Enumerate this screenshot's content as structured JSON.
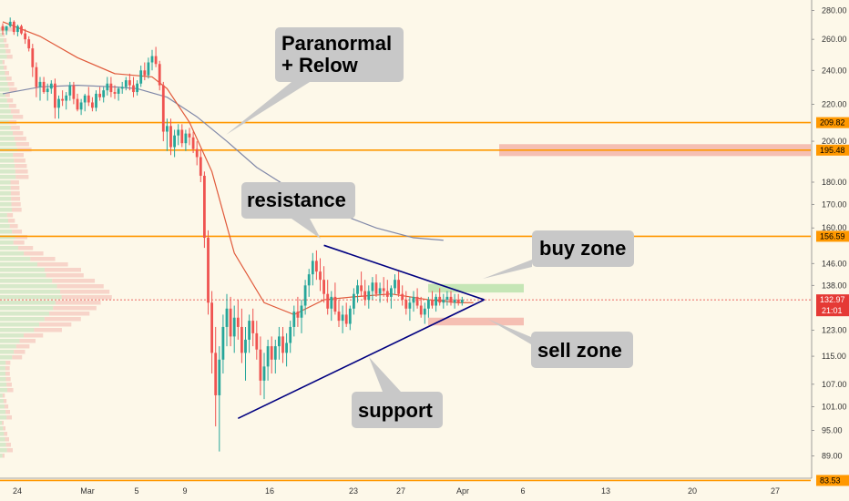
{
  "chart_data": {
    "type": "candlestick",
    "y_scale": "log",
    "ylim": [
      85,
      285
    ],
    "y_ticks": [
      {
        "value": 89,
        "label": "89.00"
      },
      {
        "value": 95,
        "label": "95.00"
      },
      {
        "value": 101,
        "label": "101.00"
      },
      {
        "value": 107,
        "label": "107.00"
      },
      {
        "value": 115,
        "label": "115.00"
      },
      {
        "value": 123,
        "label": "123.00"
      },
      {
        "value": 138,
        "label": "138.00"
      },
      {
        "value": 146,
        "label": "146.00"
      },
      {
        "value": 160,
        "label": "160.00"
      },
      {
        "value": 170,
        "label": "170.00"
      },
      {
        "value": 180,
        "label": "180.00"
      },
      {
        "value": 200,
        "label": "200.00"
      },
      {
        "value": 220,
        "label": "220.00"
      },
      {
        "value": 240,
        "label": "240.00"
      },
      {
        "value": 260,
        "label": "260.00"
      },
      {
        "value": 280,
        "label": "280.00"
      }
    ],
    "x_ticks": [
      "24",
      "Mar",
      "5",
      "9",
      "16",
      "23",
      "27",
      "Apr",
      "6",
      "13",
      "20",
      "27"
    ],
    "horizontal_levels": [
      {
        "value": 209.82,
        "label": "209.82"
      },
      {
        "value": 195.48,
        "label": "195.48"
      },
      {
        "value": 156.59,
        "label": "156.59"
      },
      {
        "value": 83.53,
        "label": "83.53"
      }
    ],
    "current_price": {
      "value": 132.97,
      "label": "132.97",
      "countdown": "21:01"
    },
    "callouts": [
      {
        "text": "Paranormal\n+ Relow"
      },
      {
        "text": "resistance"
      },
      {
        "text": "buy zone"
      },
      {
        "text": "sell zone"
      },
      {
        "text": "support"
      }
    ],
    "zones": [
      {
        "name": "buy zone",
        "low": 135.5,
        "high": 138.5
      },
      {
        "name": "sell zone",
        "low": 124.5,
        "high": 127.0
      },
      {
        "name": "resistance zone",
        "low": 192.5,
        "high": 198.5
      }
    ],
    "triangle": {
      "resistance": [
        {
          "bar": 86,
          "price": 153
        },
        {
          "bar": 126,
          "price": 133
        }
      ],
      "support": [
        {
          "bar": 63,
          "price": 98
        },
        {
          "bar": 126,
          "price": 133
        }
      ]
    },
    "candles": [
      [
        269,
        271,
        263,
        266
      ],
      [
        266,
        269,
        263,
        269
      ],
      [
        269,
        275,
        268,
        272
      ],
      [
        272,
        273,
        263,
        265
      ],
      [
        265,
        270,
        262,
        269
      ],
      [
        269,
        270,
        263,
        264
      ],
      [
        264,
        267,
        257,
        260
      ],
      [
        260,
        262,
        252,
        254
      ],
      [
        254,
        257,
        236,
        242
      ],
      [
        242,
        245,
        224,
        230
      ],
      [
        230,
        236,
        222,
        233
      ],
      [
        233,
        236,
        226,
        227
      ],
      [
        227,
        232,
        222,
        229
      ],
      [
        229,
        234,
        226,
        232
      ],
      [
        232,
        235,
        212,
        218
      ],
      [
        218,
        225,
        212,
        223
      ],
      [
        223,
        228,
        219,
        222
      ],
      [
        222,
        227,
        217,
        225
      ],
      [
        225,
        233,
        222,
        231
      ],
      [
        231,
        233,
        220,
        223
      ],
      [
        223,
        226,
        216,
        217
      ],
      [
        217,
        223,
        214,
        221
      ],
      [
        221,
        226,
        216,
        225
      ],
      [
        225,
        230,
        219,
        221
      ],
      [
        221,
        224,
        216,
        218
      ],
      [
        218,
        228,
        216,
        226
      ],
      [
        226,
        230,
        222,
        224
      ],
      [
        224,
        230,
        221,
        228
      ],
      [
        228,
        236,
        225,
        232
      ],
      [
        232,
        236,
        224,
        227
      ],
      [
        227,
        231,
        223,
        226
      ],
      [
        226,
        230,
        222,
        229
      ],
      [
        229,
        233,
        226,
        230
      ],
      [
        230,
        236,
        228,
        234
      ],
      [
        234,
        238,
        228,
        231
      ],
      [
        231,
        236,
        224,
        227
      ],
      [
        227,
        234,
        225,
        232
      ],
      [
        232,
        243,
        230,
        240
      ],
      [
        240,
        245,
        234,
        237
      ],
      [
        237,
        248,
        235,
        245
      ],
      [
        245,
        253,
        240,
        249
      ],
      [
        249,
        255,
        242,
        244
      ],
      [
        244,
        246,
        228,
        231
      ],
      [
        231,
        233,
        200,
        205
      ],
      [
        205,
        212,
        195,
        208
      ],
      [
        208,
        212,
        193,
        197
      ],
      [
        197,
        206,
        192,
        203
      ],
      [
        203,
        209,
        198,
        206
      ],
      [
        206,
        209,
        197,
        199
      ],
      [
        199,
        206,
        195,
        204
      ],
      [
        204,
        207,
        198,
        202
      ],
      [
        202,
        205,
        194,
        196
      ],
      [
        196,
        200,
        188,
        192
      ],
      [
        192,
        196,
        180,
        183
      ],
      [
        183,
        185,
        152,
        156
      ],
      [
        156,
        159,
        128,
        132
      ],
      [
        132,
        136,
        110,
        116
      ],
      [
        116,
        124,
        96,
        104
      ],
      [
        104,
        118,
        90,
        114
      ],
      [
        114,
        128,
        110,
        124
      ],
      [
        124,
        135,
        118,
        130
      ],
      [
        130,
        134,
        118,
        121
      ],
      [
        121,
        131,
        116,
        127
      ],
      [
        127,
        133,
        120,
        124
      ],
      [
        124,
        130,
        113,
        116
      ],
      [
        116,
        124,
        108,
        120
      ],
      [
        120,
        128,
        116,
        126
      ],
      [
        126,
        130,
        118,
        122
      ],
      [
        122,
        126,
        114,
        117
      ],
      [
        117,
        121,
        104,
        108
      ],
      [
        108,
        116,
        103,
        112
      ],
      [
        112,
        120,
        108,
        118
      ],
      [
        118,
        121,
        110,
        114
      ],
      [
        114,
        120,
        110,
        118
      ],
      [
        118,
        124,
        114,
        121
      ],
      [
        121,
        124,
        113,
        116
      ],
      [
        116,
        122,
        112,
        119
      ],
      [
        119,
        126,
        116,
        124
      ],
      [
        124,
        131,
        121,
        129
      ],
      [
        129,
        134,
        124,
        127
      ],
      [
        127,
        133,
        122,
        131
      ],
      [
        131,
        140,
        128,
        138
      ],
      [
        138,
        144,
        134,
        142
      ],
      [
        142,
        150,
        138,
        147
      ],
      [
        147,
        151,
        140,
        143
      ],
      [
        143,
        148,
        136,
        140
      ],
      [
        140,
        145,
        132,
        135
      ],
      [
        135,
        140,
        128,
        130
      ],
      [
        130,
        136,
        126,
        134
      ],
      [
        134,
        139,
        128,
        129
      ],
      [
        129,
        133,
        124,
        126
      ],
      [
        126,
        131,
        122,
        128
      ],
      [
        128,
        132,
        124,
        125
      ],
      [
        125,
        131,
        123,
        130
      ],
      [
        130,
        137,
        128,
        135
      ],
      [
        135,
        140,
        132,
        138
      ],
      [
        138,
        143,
        134,
        136
      ],
      [
        136,
        140,
        131,
        133
      ],
      [
        133,
        138,
        130,
        136
      ],
      [
        136,
        141,
        133,
        139
      ],
      [
        139,
        142,
        134,
        135
      ],
      [
        135,
        139,
        132,
        137
      ],
      [
        137,
        141,
        134,
        136
      ],
      [
        136,
        140,
        132,
        134
      ],
      [
        134,
        138,
        130,
        137
      ],
      [
        137,
        142,
        135,
        140
      ],
      [
        140,
        143,
        134,
        135
      ],
      [
        135,
        138,
        131,
        133
      ],
      [
        133,
        136,
        128,
        130
      ],
      [
        130,
        134,
        126,
        132
      ],
      [
        132,
        136,
        129,
        134
      ],
      [
        134,
        137,
        130,
        131
      ],
      [
        131,
        134,
        127,
        128
      ],
      [
        128,
        132,
        125,
        130
      ],
      [
        130,
        134,
        127,
        133
      ],
      [
        133,
        136,
        130,
        131
      ],
      [
        131,
        135,
        129,
        134
      ],
      [
        134,
        137,
        131,
        132
      ],
      [
        132,
        135,
        130,
        133
      ],
      [
        133,
        136,
        131,
        134
      ],
      [
        134,
        136,
        131,
        132
      ],
      [
        132,
        135,
        130,
        133
      ],
      [
        133,
        135,
        131,
        132
      ],
      [
        132,
        134,
        131,
        133
      ]
    ],
    "ma_slow": [
      [
        0,
        226
      ],
      [
        10,
        230
      ],
      [
        20,
        231
      ],
      [
        30,
        230
      ],
      [
        36,
        229
      ],
      [
        44,
        224
      ],
      [
        52,
        213
      ],
      [
        60,
        200
      ],
      [
        68,
        187
      ],
      [
        78,
        176
      ],
      [
        90,
        166
      ],
      [
        100,
        160
      ],
      [
        110,
        156
      ],
      [
        118,
        155
      ]
    ],
    "ma_fast": [
      [
        0,
        272
      ],
      [
        10,
        262
      ],
      [
        20,
        248
      ],
      [
        30,
        238
      ],
      [
        40,
        236
      ],
      [
        44,
        229
      ],
      [
        50,
        210
      ],
      [
        56,
        185
      ],
      [
        62,
        150
      ],
      [
        70,
        132
      ],
      [
        78,
        128
      ],
      [
        86,
        133
      ],
      [
        94,
        134
      ],
      [
        104,
        135
      ],
      [
        114,
        133
      ],
      [
        122,
        132
      ],
      [
        126,
        132
      ]
    ]
  },
  "colors": {
    "background": "#fdf8e9",
    "up": "#26a69a",
    "down": "#ef5350",
    "level": "#ff9800",
    "triangle": "#000080",
    "ma_slow": "#8088a8",
    "ma_fast": "#e0593a",
    "callout_bg": "#c8c8c8",
    "buy_zone": "#bfe3b0",
    "sell_zone": "#f4b8ad",
    "current_price": "#e53935"
  }
}
